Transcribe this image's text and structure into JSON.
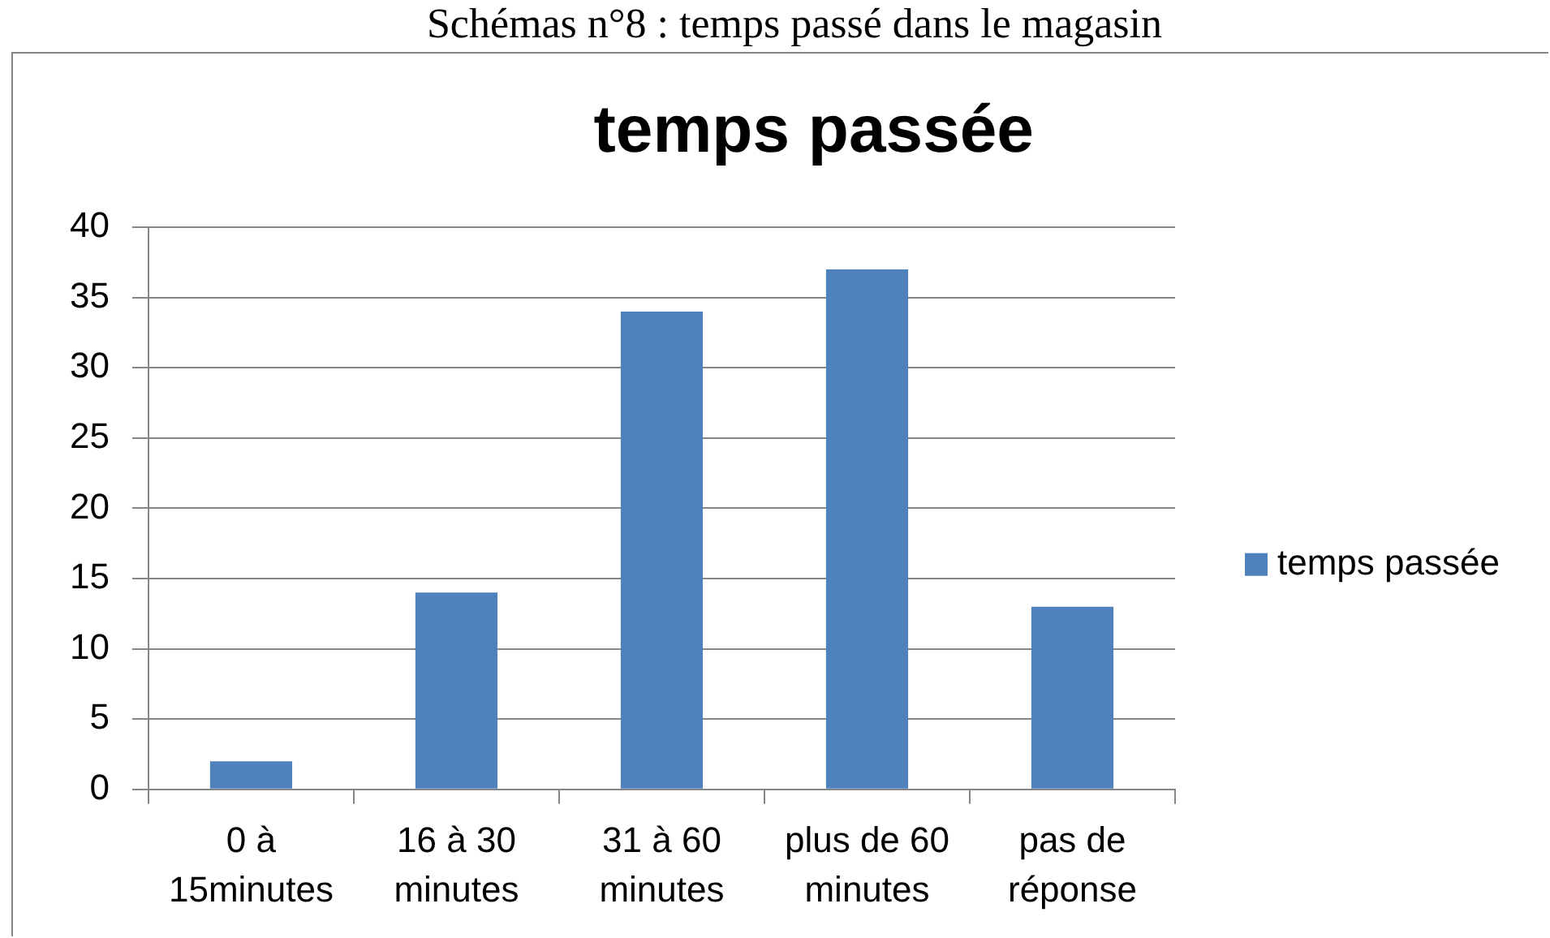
{
  "chart_data": {
    "type": "bar",
    "title": "temps passée",
    "annotations": [
      "Schémas n°8 : temps passé dans le magasin"
    ],
    "categories": [
      "0 à 15minutes",
      "16 à 30 minutes",
      "31 à 60 minutes",
      "plus de 60 minutes",
      "pas de réponse"
    ],
    "series": [
      {
        "name": "temps passée",
        "color": "#4f81bd",
        "values": [
          2,
          14,
          34,
          37,
          13
        ]
      }
    ],
    "ylim": [
      0,
      40
    ],
    "yticks": [
      0,
      5,
      10,
      15,
      20,
      25,
      30,
      35,
      40
    ],
    "grid": "y",
    "legend": "right"
  }
}
